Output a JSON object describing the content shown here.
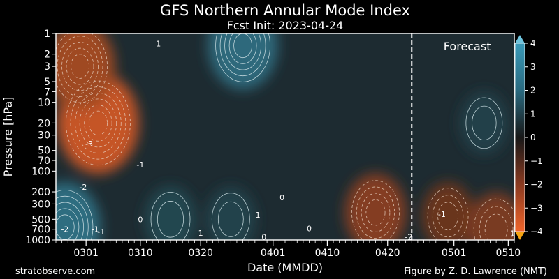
{
  "chart_data": {
    "type": "contour",
    "title": "GFS Northern Annular Mode Index",
    "subtitle": "Fcst Init: 2023-04-24",
    "xlabel": "Date (MMDD)",
    "ylabel": "Pressure [hPa]",
    "x_ticks": [
      "0301",
      "0310",
      "0320",
      "0401",
      "0410",
      "0420",
      "0501",
      "0510"
    ],
    "x_tick_days": [
      28,
      37,
      47,
      59,
      68,
      78,
      89,
      98
    ],
    "xlim_days": [
      23,
      99
    ],
    "forecast_start_day": 82,
    "forecast_label": "Forecast",
    "y_ticks": [
      1,
      2,
      3,
      5,
      7,
      10,
      20,
      30,
      50,
      70,
      100,
      200,
      300,
      500,
      700,
      1000
    ],
    "ylim_hpa": [
      1,
      1000
    ],
    "y_scale": "log",
    "colorbar": {
      "min": -4,
      "max": 4,
      "ticks": [
        4,
        3,
        2,
        1,
        0,
        -1,
        -2,
        -3,
        -4
      ],
      "palette": {
        "neg_max": "#f0642a",
        "neutral": "#181818",
        "pos_max": "#3a9ab8"
      }
    },
    "contour_labels": [
      {
        "text": "1",
        "day": 40,
        "hpa": 1.4
      },
      {
        "text": "-3",
        "day": 28.5,
        "hpa": 40
      },
      {
        "text": "-1",
        "day": 37,
        "hpa": 80
      },
      {
        "text": "-2",
        "day": 27.5,
        "hpa": 170
      },
      {
        "text": "0",
        "day": 37,
        "hpa": 500
      },
      {
        "text": "-2",
        "day": 24.5,
        "hpa": 700
      },
      {
        "text": "-1",
        "day": 29.5,
        "hpa": 700
      },
      {
        "text": "-1",
        "day": 30.5,
        "hpa": 760
      },
      {
        "text": "1",
        "day": 47,
        "hpa": 790
      },
      {
        "text": "1",
        "day": 56.5,
        "hpa": 430
      },
      {
        "text": "0",
        "day": 60.5,
        "hpa": 240
      },
      {
        "text": "0",
        "day": 57.5,
        "hpa": 900
      },
      {
        "text": "0",
        "day": 65,
        "hpa": 680
      },
      {
        "text": "-2",
        "day": 81.5,
        "hpa": 900
      },
      {
        "text": "-1",
        "day": 87,
        "hpa": 420
      },
      {
        "text": "-1",
        "day": 98.5,
        "hpa": 800
      }
    ],
    "field_features": [
      {
        "sign": "negative",
        "value": -3.2,
        "day": 30,
        "hpa": 20
      },
      {
        "sign": "negative",
        "value": -2.5,
        "day": 27,
        "hpa": 3
      },
      {
        "sign": "negative",
        "value": -2.0,
        "day": 76,
        "hpa": 400
      },
      {
        "sign": "negative",
        "value": -1.5,
        "day": 88,
        "hpa": 450
      },
      {
        "sign": "negative",
        "value": -1.8,
        "day": 96,
        "hpa": 700
      },
      {
        "sign": "positive",
        "value": 2.5,
        "day": 54,
        "hpa": 1.5
      },
      {
        "sign": "positive",
        "value": 2.6,
        "day": 24.5,
        "hpa": 650
      },
      {
        "sign": "positive",
        "value": 1.4,
        "day": 42,
        "hpa": 500
      },
      {
        "sign": "positive",
        "value": 1.3,
        "day": 52,
        "hpa": 500
      },
      {
        "sign": "positive",
        "value": 1.2,
        "day": 94,
        "hpa": 20
      }
    ]
  },
  "footer": {
    "left": "stratobserve.com",
    "right": "Figure by Z. D. Lawrence (NMT)"
  }
}
